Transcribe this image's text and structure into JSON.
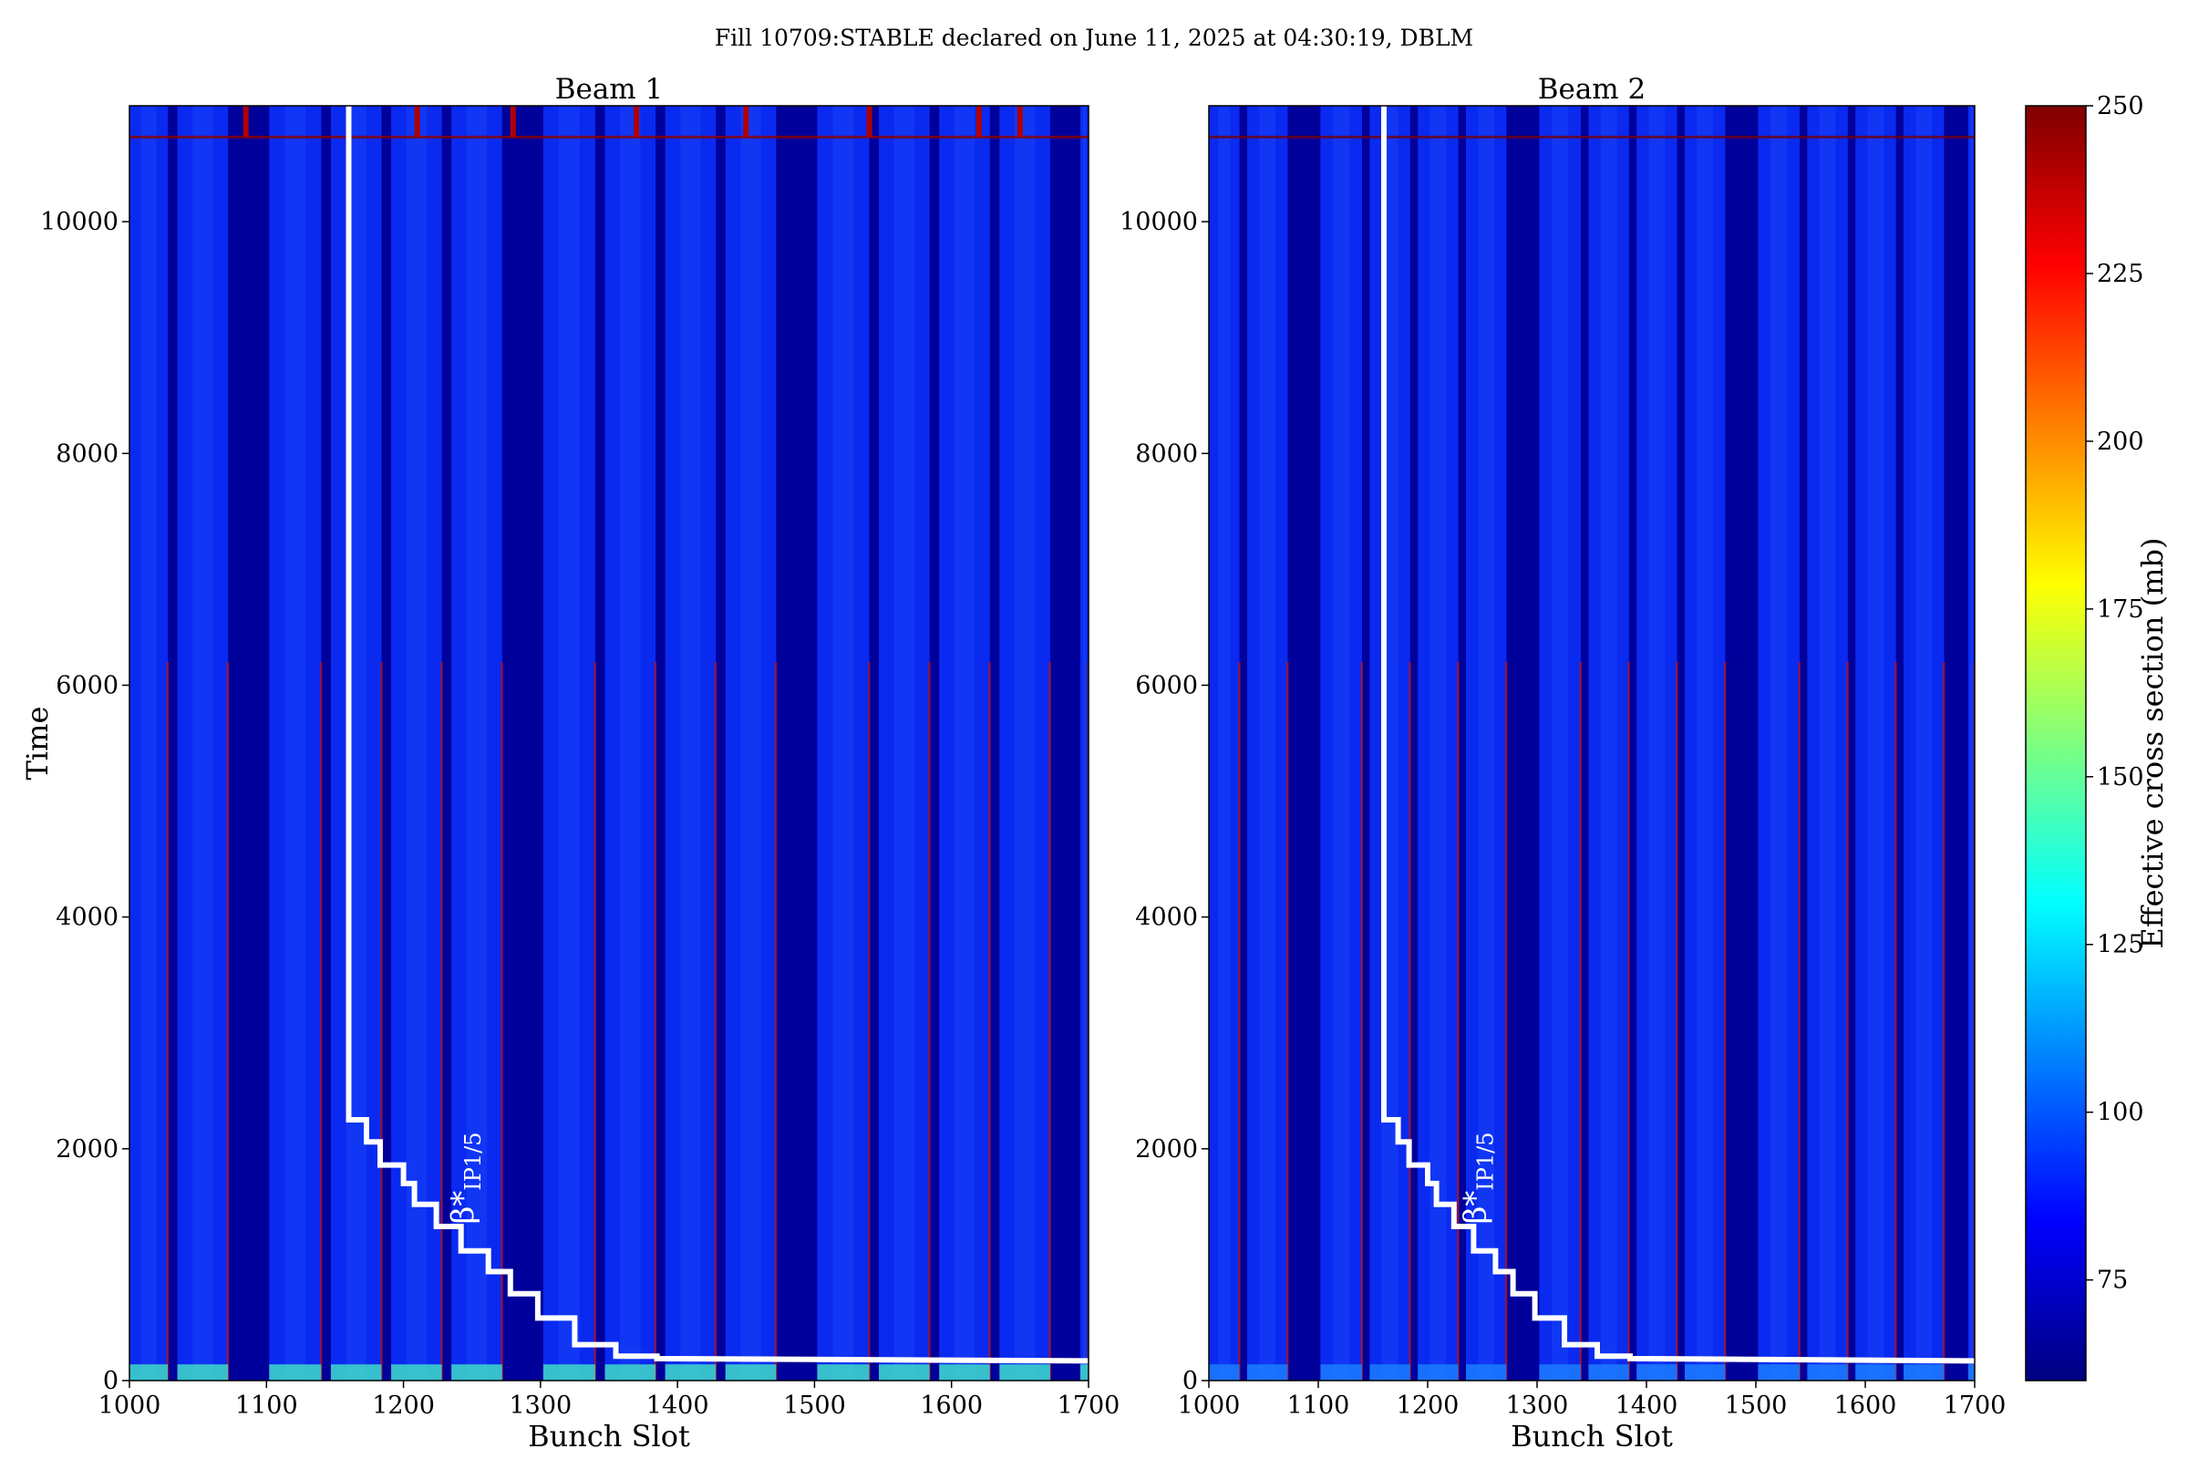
{
  "chart_data": {
    "type": "heatmap",
    "title": "Fill 10709:STABLE declared on June 11, 2025 at 04:30:19, DBLM",
    "panels": [
      {
        "title": "Beam 1",
        "xlabel": "Bunch Slot",
        "ylabel": "Time",
        "xlim": [
          1000,
          1700
        ],
        "ylim": [
          0,
          11000
        ],
        "xticks": [
          "1000",
          "1100",
          "1200",
          "1300",
          "1400",
          "1500",
          "1600",
          "1700"
        ],
        "yticks": [
          "0",
          "2000",
          "4000",
          "6000",
          "8000",
          "10000"
        ],
        "filled_slot_ranges": [
          [
            1000,
            1028
          ],
          [
            1035,
            1072
          ],
          [
            1102,
            1140
          ],
          [
            1147,
            1184
          ],
          [
            1191,
            1228
          ],
          [
            1235,
            1272
          ],
          [
            1302,
            1340
          ],
          [
            1347,
            1384
          ],
          [
            1391,
            1428
          ],
          [
            1435,
            1472
          ],
          [
            1502,
            1540
          ],
          [
            1547,
            1584
          ],
          [
            1591,
            1628
          ],
          [
            1635,
            1672
          ],
          [
            1694,
            1700
          ]
        ],
        "overlay_label": "β*",
        "overlay_sub": "IP1/5"
      },
      {
        "title": "Beam 2",
        "xlabel": "Bunch Slot",
        "ylabel": "",
        "xlim": [
          1000,
          1700
        ],
        "ylim": [
          0,
          11000
        ],
        "xticks": [
          "1000",
          "1100",
          "1200",
          "1300",
          "1400",
          "1500",
          "1600",
          "1700"
        ],
        "yticks": [
          "0",
          "2000",
          "4000",
          "6000",
          "8000",
          "10000"
        ],
        "filled_slot_ranges": [
          [
            1000,
            1028
          ],
          [
            1035,
            1072
          ],
          [
            1102,
            1140
          ],
          [
            1147,
            1184
          ],
          [
            1191,
            1228
          ],
          [
            1235,
            1272
          ],
          [
            1302,
            1340
          ],
          [
            1347,
            1384
          ],
          [
            1391,
            1428
          ],
          [
            1435,
            1472
          ],
          [
            1502,
            1540
          ],
          [
            1547,
            1584
          ],
          [
            1591,
            1628
          ],
          [
            1635,
            1672
          ],
          [
            1694,
            1700
          ]
        ],
        "overlay_label": "β*",
        "overlay_sub": "IP1/5"
      }
    ],
    "beta_star_steps": [
      {
        "x": 1160,
        "y": 11000
      },
      {
        "x": 1160,
        "y": 2250
      },
      {
        "x": 1173,
        "y": 2250
      },
      {
        "x": 1173,
        "y": 2060
      },
      {
        "x": 1183,
        "y": 2060
      },
      {
        "x": 1183,
        "y": 1860
      },
      {
        "x": 1200,
        "y": 1860
      },
      {
        "x": 1200,
        "y": 1700
      },
      {
        "x": 1208,
        "y": 1700
      },
      {
        "x": 1208,
        "y": 1520
      },
      {
        "x": 1224,
        "y": 1520
      },
      {
        "x": 1224,
        "y": 1330
      },
      {
        "x": 1242,
        "y": 1330
      },
      {
        "x": 1242,
        "y": 1120
      },
      {
        "x": 1262,
        "y": 1120
      },
      {
        "x": 1262,
        "y": 940
      },
      {
        "x": 1278,
        "y": 940
      },
      {
        "x": 1278,
        "y": 750
      },
      {
        "x": 1298,
        "y": 750
      },
      {
        "x": 1298,
        "y": 540
      },
      {
        "x": 1325,
        "y": 540
      },
      {
        "x": 1325,
        "y": 310
      },
      {
        "x": 1355,
        "y": 310
      },
      {
        "x": 1355,
        "y": 210
      },
      {
        "x": 1385,
        "y": 210
      },
      {
        "x": 1385,
        "y": 190
      },
      {
        "x": 1700,
        "y": 170
      }
    ],
    "colorbar": {
      "label": "Effective cross section (mb)",
      "range": [
        60,
        250
      ],
      "ticks": [
        "75",
        "100",
        "125",
        "150",
        "175",
        "200",
        "225",
        "250"
      ],
      "colormap": [
        "#00007f",
        "#0000ff",
        "#007fff",
        "#00ffff",
        "#7fff7f",
        "#ffff00",
        "#ff7f00",
        "#ff0000",
        "#7f0000"
      ]
    },
    "colors": {
      "empty_slot": "#00009a",
      "filled_slot": "#0a2af0",
      "overlay": "#ffffff"
    }
  }
}
